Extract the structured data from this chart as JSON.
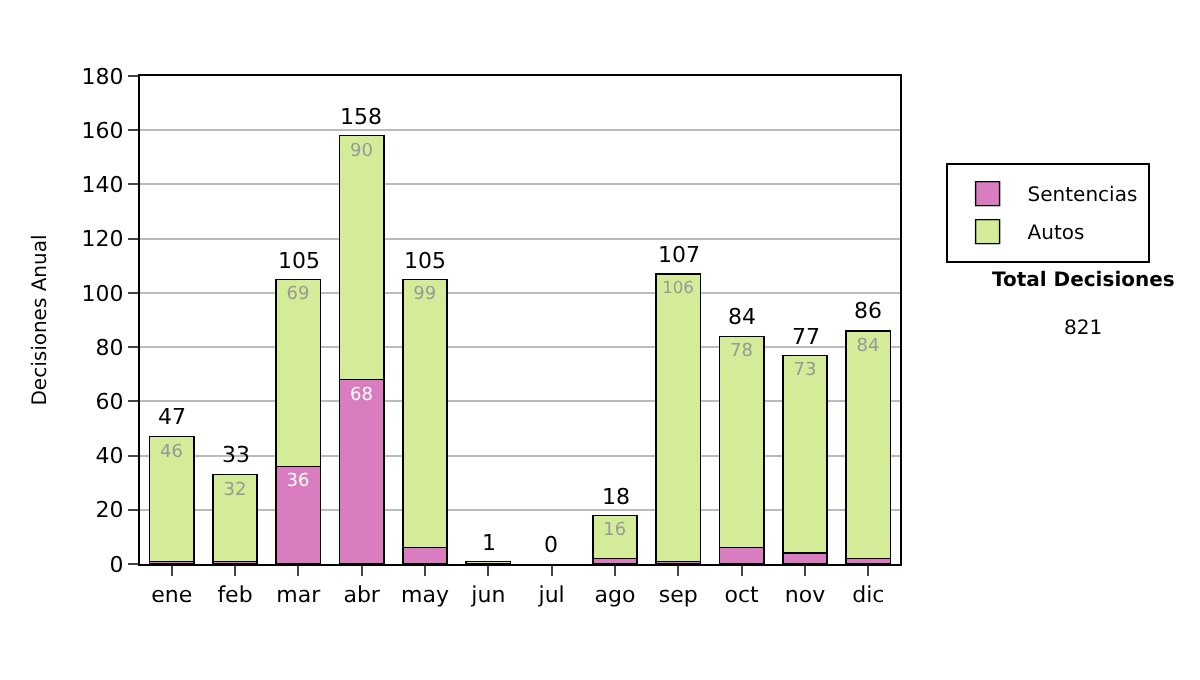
{
  "chart_data": {
    "type": "bar",
    "stacked": true,
    "categories": [
      "ene",
      "feb",
      "mar",
      "abr",
      "may",
      "jun",
      "jul",
      "ago",
      "sep",
      "oct",
      "nov",
      "dic"
    ],
    "ylabel": "Decisiones Anual",
    "series": [
      {
        "name": "Sentencias",
        "color": "#d97cc0",
        "values": [
          1,
          1,
          36,
          68,
          6,
          0,
          0,
          2,
          1,
          6,
          4,
          2
        ],
        "value_labels": [
          null,
          null,
          "36",
          "68",
          null,
          null,
          null,
          null,
          null,
          null,
          null,
          null
        ]
      },
      {
        "name": "Autos",
        "color": "#d4ec98",
        "values": [
          46,
          32,
          69,
          90,
          99,
          1,
          0,
          16,
          106,
          78,
          73,
          84
        ],
        "value_labels": [
          "46",
          "32",
          "69",
          "90",
          "99",
          null,
          null,
          "16",
          "106",
          "78",
          "73",
          "84"
        ]
      }
    ],
    "totals": [
      "47",
      "33",
      "105",
      "158",
      "105",
      "1",
      "0",
      "18",
      "107",
      "84",
      "77",
      "86"
    ],
    "ylim": [
      0,
      180
    ],
    "yticks": [
      0,
      20,
      40,
      60,
      80,
      100,
      120,
      140,
      160,
      180
    ],
    "grid": "y",
    "legend": "right",
    "annotations": [
      "Total Decisiones",
      "821"
    ]
  }
}
